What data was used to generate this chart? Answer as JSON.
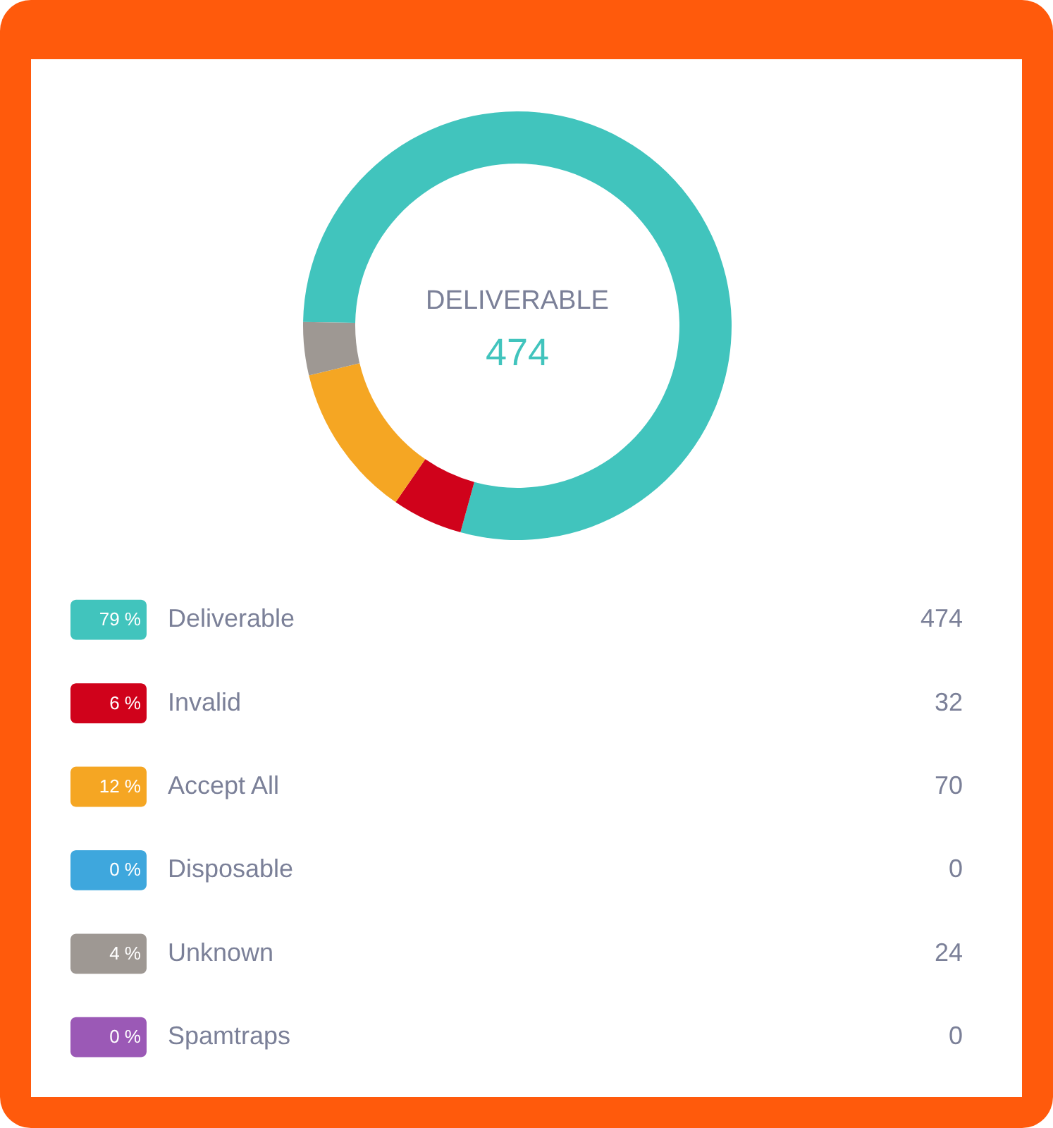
{
  "chart_data": {
    "type": "donut",
    "categories": [
      "Deliverable",
      "Invalid",
      "Accept All",
      "Disposable",
      "Unknown",
      "Spamtraps"
    ],
    "values": [
      474,
      32,
      70,
      0,
      24,
      0
    ],
    "colors": [
      "#41c4bd",
      "#d0021b",
      "#f5a623",
      "#3ea7dd",
      "#9e9893",
      "#9b59b6"
    ],
    "value_labels": [
      "474",
      "32",
      "70",
      "0",
      "24",
      "0"
    ],
    "legend": "bottom",
    "annotations": [
      "DELIVERABLE",
      "474",
      {
        "text": "79 %",
        "x": "Deliverable"
      },
      {
        "text": "6 %",
        "x": "Invalid"
      },
      {
        "text": "12 %",
        "x": "Accept All"
      },
      {
        "text": "0 %",
        "x": "Disposable"
      },
      {
        "text": "4 %",
        "x": "Unknown"
      },
      {
        "text": "0 %",
        "x": "Spamtraps"
      }
    ]
  }
}
